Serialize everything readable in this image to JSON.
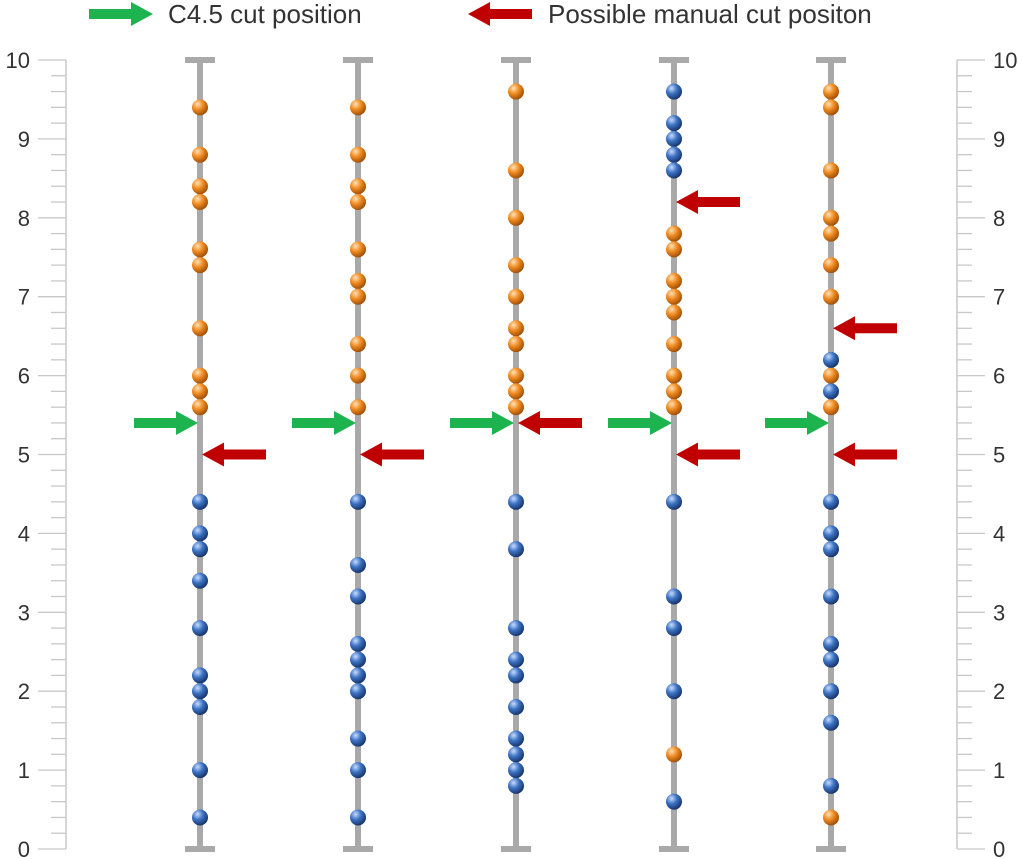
{
  "chart_data": {
    "type": "scatter",
    "ylim": [
      0,
      10
    ],
    "y_ticks": [
      "0",
      "1",
      "2",
      "3",
      "4",
      "5",
      "6",
      "7",
      "8",
      "9",
      "10"
    ],
    "legend": {
      "placement": "top",
      "entries": [
        {
          "label": "C4.5 cut position",
          "color": "#1db34f",
          "icon": "right-arrow-icon"
        },
        {
          "label": "Possible manual cut positon",
          "color": "#c00000",
          "icon": "left-arrow-icon"
        }
      ]
    },
    "class_colors": {
      "orange": "#e8821e",
      "blue": "#2e64b0"
    },
    "columns": [
      {
        "orange": [
          9.4,
          8.8,
          8.4,
          8.2,
          7.6,
          7.4,
          6.6,
          6.0,
          5.8,
          5.6
        ],
        "blue": [
          4.4,
          4.0,
          3.8,
          3.4,
          2.8,
          2.2,
          2.0,
          1.8,
          1.0,
          0.4
        ],
        "c45_cut": 5.4,
        "manual_cuts": [
          5.0
        ]
      },
      {
        "orange": [
          9.4,
          8.8,
          8.4,
          8.2,
          7.6,
          7.2,
          7.0,
          6.4,
          6.0,
          5.6
        ],
        "blue": [
          4.4,
          3.6,
          3.2,
          2.6,
          2.4,
          2.2,
          2.0,
          1.4,
          1.0,
          0.4
        ],
        "c45_cut": 5.4,
        "manual_cuts": [
          5.0
        ]
      },
      {
        "orange": [
          9.6,
          8.6,
          8.0,
          7.4,
          7.0,
          6.6,
          6.4,
          6.0,
          5.8,
          5.6
        ],
        "blue": [
          4.4,
          3.8,
          2.8,
          2.4,
          2.2,
          1.8,
          1.4,
          1.2,
          1.0,
          0.8
        ],
        "c45_cut": 5.4,
        "manual_cuts": [
          5.4
        ]
      },
      {
        "orange": [
          7.8,
          7.6,
          7.2,
          7.0,
          6.8,
          6.4,
          6.0,
          5.8,
          5.6,
          1.2
        ],
        "blue": [
          9.6,
          9.2,
          9.0,
          8.8,
          8.6,
          4.4,
          3.2,
          2.8,
          2.0,
          0.6
        ],
        "c45_cut": 5.4,
        "manual_cuts": [
          8.2,
          5.0
        ]
      },
      {
        "orange": [
          9.6,
          9.4,
          8.6,
          8.0,
          7.8,
          7.4,
          7.0,
          6.0,
          5.6,
          0.4
        ],
        "blue": [
          6.2,
          5.8,
          4.4,
          4.0,
          3.8,
          3.2,
          2.6,
          2.4,
          2.0,
          1.6,
          0.8
        ],
        "c45_cut": 5.4,
        "manual_cuts": [
          6.6,
          5.0
        ]
      }
    ]
  }
}
